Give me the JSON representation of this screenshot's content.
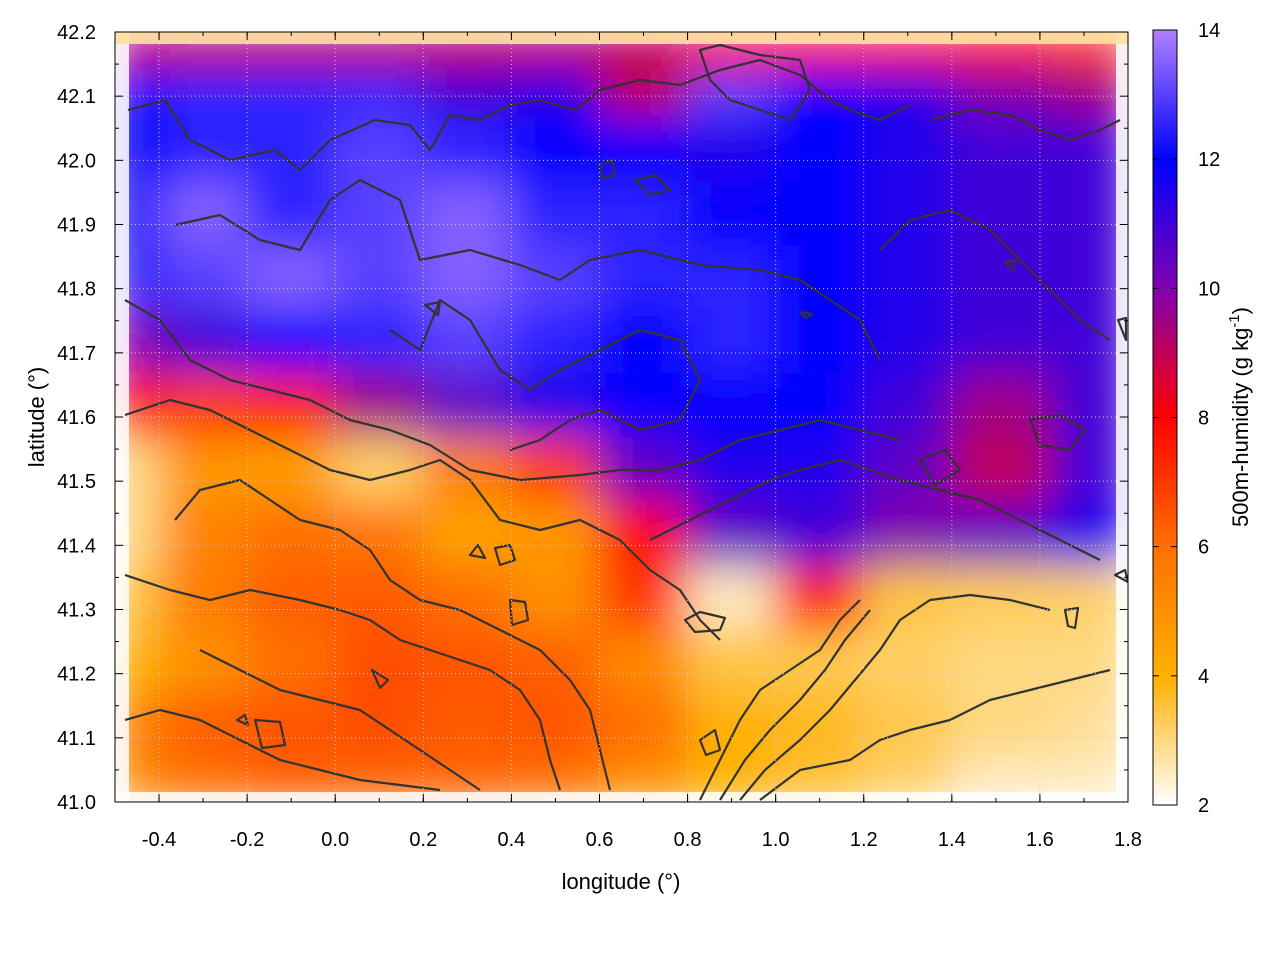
{
  "chart_data": {
    "type": "heatmap",
    "xlabel": "longitude (°)",
    "ylabel": "latitude (°)",
    "xlim": [
      -0.5,
      1.8
    ],
    "ylim": [
      41.0,
      42.2
    ],
    "x_ticks": [
      "-0.4",
      "-0.2",
      "0.0",
      "0.2",
      "0.4",
      "0.6",
      "0.8",
      "1.0",
      "1.2",
      "1.4",
      "1.6",
      "1.8"
    ],
    "x_tick_values": [
      -0.4,
      -0.2,
      0.0,
      0.2,
      0.4,
      0.6,
      0.8,
      1.0,
      1.2,
      1.4,
      1.6,
      1.8
    ],
    "y_ticks": [
      "41.0",
      "41.1",
      "41.2",
      "41.3",
      "41.4",
      "41.5",
      "41.6",
      "41.7",
      "41.8",
      "41.9",
      "42.0",
      "42.1",
      "42.2"
    ],
    "y_tick_values": [
      41.0,
      41.1,
      41.2,
      41.3,
      41.4,
      41.5,
      41.6,
      41.7,
      41.8,
      41.9,
      42.0,
      42.1,
      42.2
    ],
    "colorbar": {
      "label_main": "500m-humidity (g kg",
      "label_sup": "-1",
      "label_end": ")",
      "range": [
        2,
        14
      ],
      "ticks": [
        "2",
        "4",
        "6",
        "8",
        "10",
        "12",
        "14"
      ],
      "tick_values": [
        2,
        4,
        6,
        8,
        10,
        12,
        14
      ],
      "colors": [
        "#ffffff",
        "#ffb000",
        "#ff7000",
        "#ff0000",
        "#8000b0",
        "#0000ff",
        "#b080ff"
      ]
    },
    "grid": true,
    "contours": true,
    "humidity_field": {
      "x": [
        -0.48,
        -0.3,
        -0.1,
        0.1,
        0.3,
        0.5,
        0.7,
        0.9,
        1.1,
        1.3,
        1.5,
        1.76
      ],
      "y": [
        41.02,
        41.12,
        41.22,
        41.32,
        41.42,
        41.52,
        41.62,
        41.72,
        41.82,
        41.92,
        42.02,
        42.12,
        42.17
      ],
      "z": [
        [
          5.2,
          6.0,
          6.3,
          6.2,
          6.2,
          6.0,
          5.0,
          4.0,
          3.6,
          3.2,
          2.5,
          2.5
        ],
        [
          5.5,
          6.3,
          6.5,
          6.6,
          6.4,
          6.5,
          6.0,
          4.0,
          3.8,
          3.4,
          3.0,
          2.8
        ],
        [
          4.0,
          5.0,
          6.0,
          6.6,
          6.5,
          6.3,
          5.2,
          3.5,
          3.4,
          3.2,
          3.0,
          3.0
        ],
        [
          3.5,
          5.6,
          6.3,
          6.4,
          6.0,
          5.0,
          7.0,
          2.5,
          7.5,
          3.5,
          3.3,
          3.2
        ],
        [
          3.0,
          5.4,
          6.0,
          5.8,
          4.5,
          4.8,
          8.0,
          10.5,
          11.0,
          10.0,
          10.5,
          11.5
        ],
        [
          3.0,
          4.8,
          4.6,
          3.2,
          5.5,
          7.0,
          10.5,
          11.5,
          11.5,
          10.5,
          9.0,
          11.0
        ],
        [
          8.0,
          7.0,
          7.5,
          9.5,
          10.5,
          11.5,
          12.0,
          12.0,
          12.0,
          11.0,
          9.5,
          11.0
        ],
        [
          10.0,
          11.0,
          12.0,
          12.5,
          13.0,
          12.5,
          12.0,
          12.5,
          12.0,
          11.5,
          11.0,
          11.0
        ],
        [
          12.5,
          13.0,
          13.5,
          13.0,
          13.5,
          13.0,
          12.5,
          12.5,
          12.0,
          11.5,
          11.0,
          11.0
        ],
        [
          12.0,
          13.5,
          12.5,
          13.0,
          13.5,
          12.5,
          12.5,
          12.0,
          12.0,
          11.5,
          11.0,
          11.0
        ],
        [
          12.0,
          12.5,
          12.5,
          13.0,
          12.5,
          12.0,
          12.0,
          11.5,
          12.0,
          11.5,
          11.0,
          11.0
        ],
        [
          12.0,
          12.5,
          12.5,
          12.5,
          11.0,
          11.5,
          9.0,
          13.0,
          12.0,
          11.5,
          10.0,
          9.5
        ],
        [
          9.0,
          9.0,
          9.0,
          9.0,
          9.0,
          9.0,
          9.0,
          8.0,
          7.5,
          7.5,
          7.5,
          7.0
        ]
      ]
    }
  }
}
